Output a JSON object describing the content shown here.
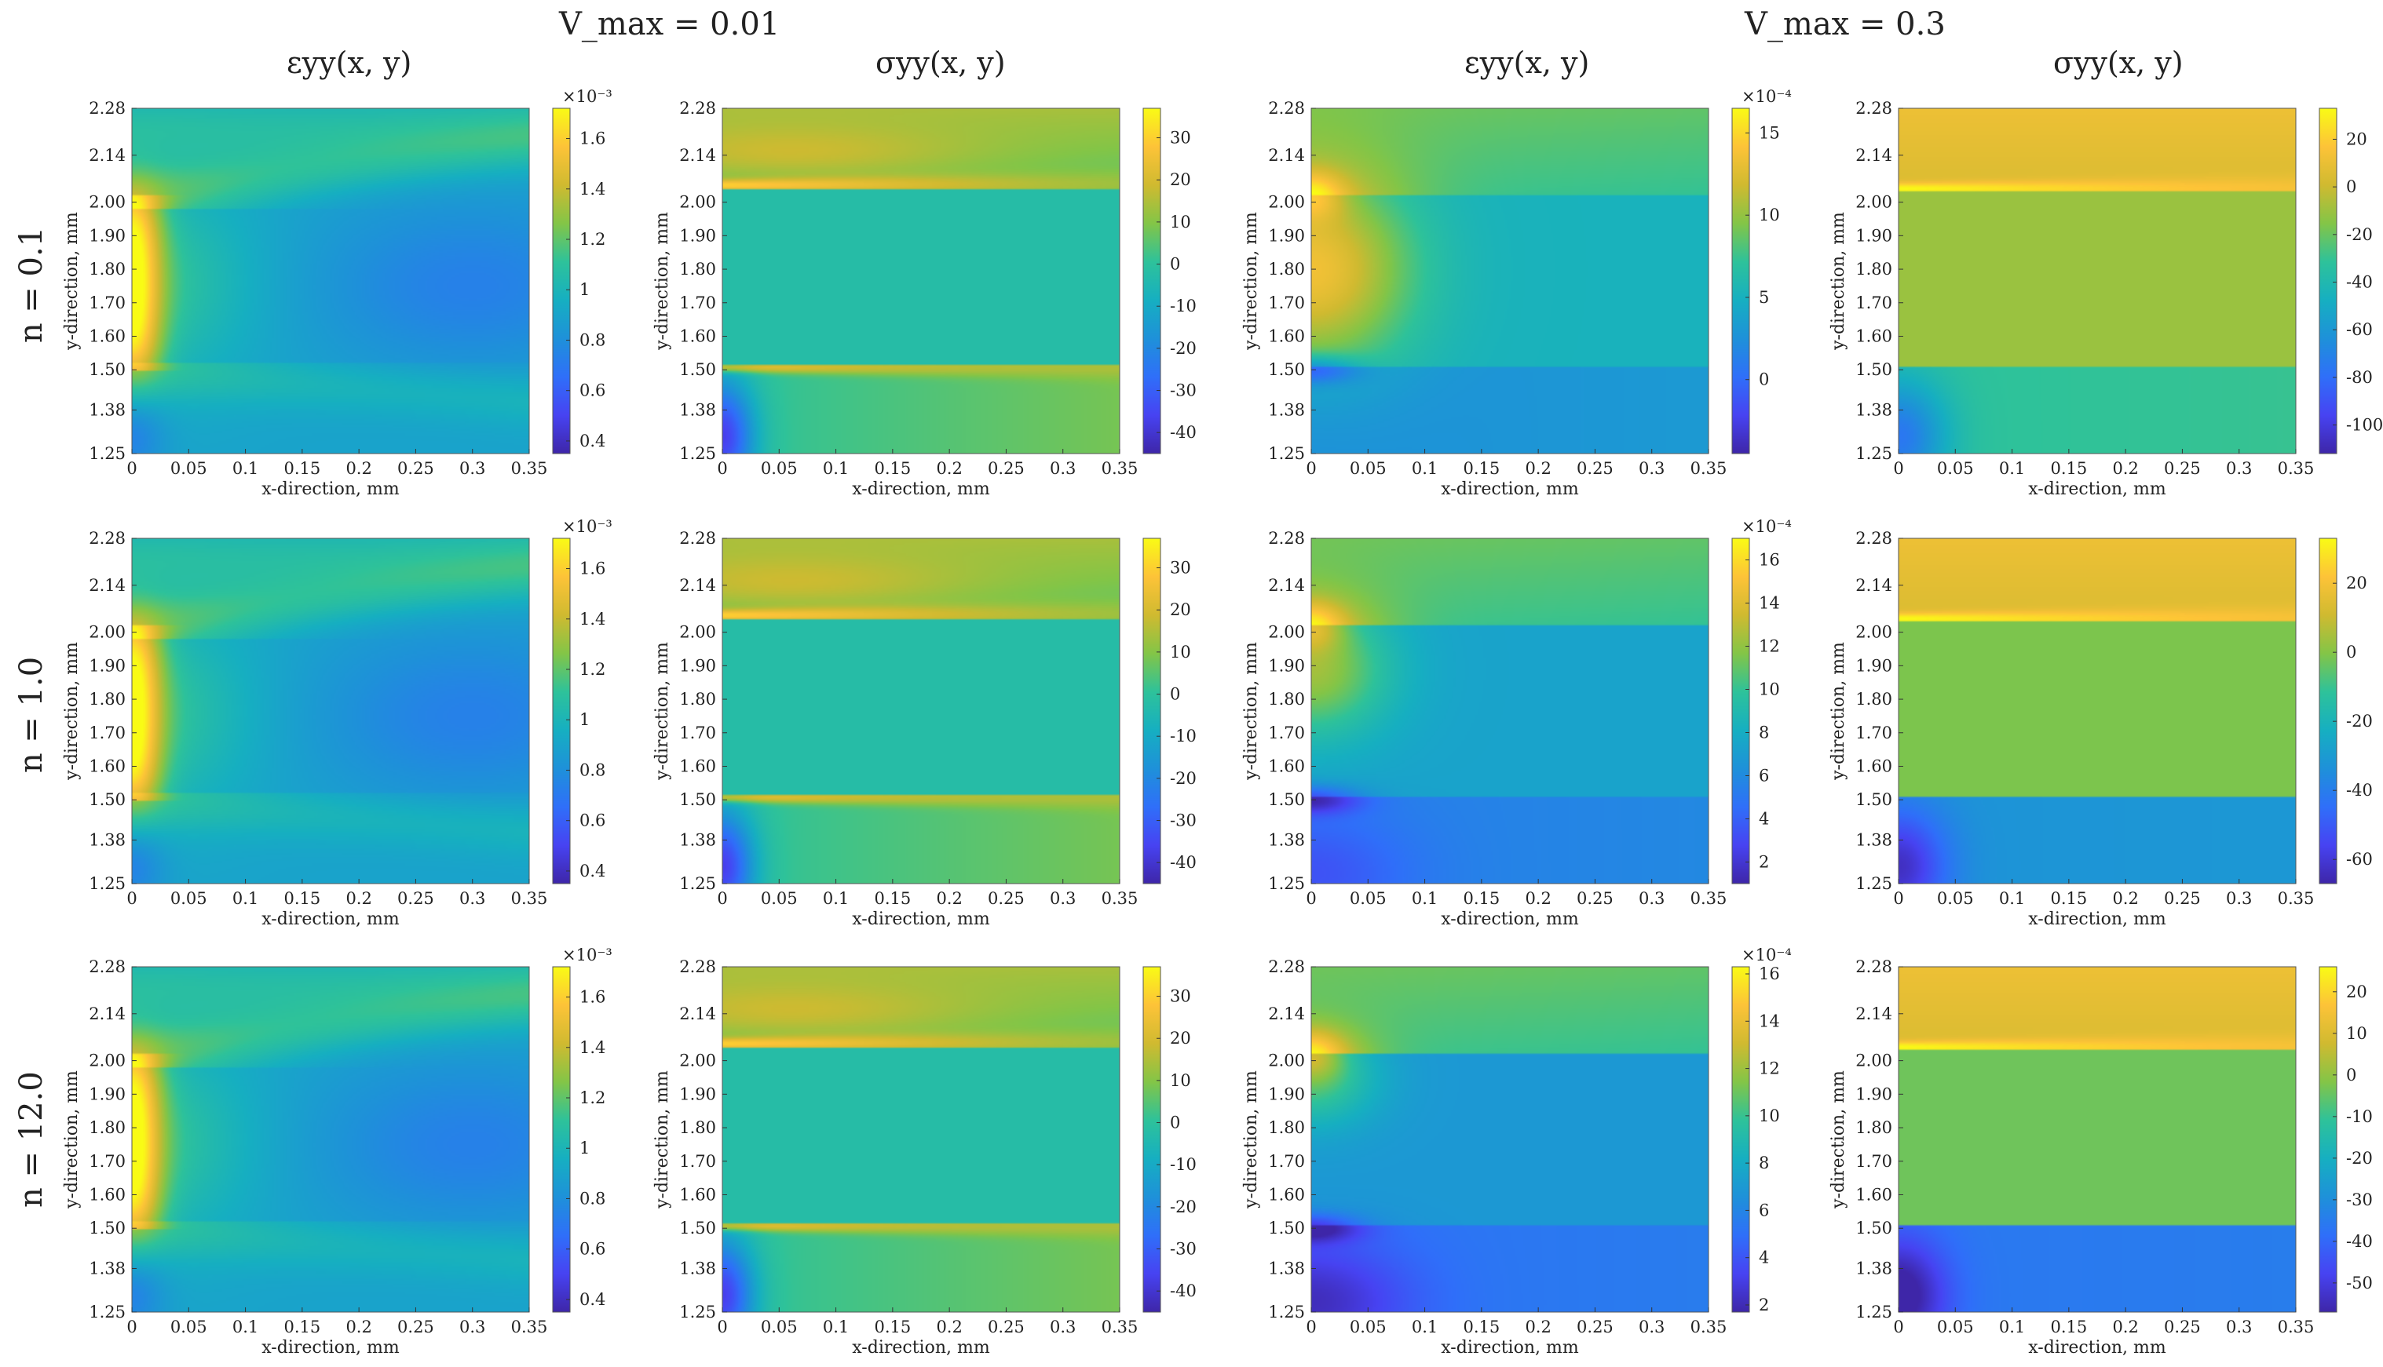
{
  "figure": {
    "group_titles": [
      "V_max = 0.01",
      "V_max = 0.3"
    ],
    "column_titles": [
      "εyy(x, y)",
      "σyy(x, y)",
      "εyy(x, y)",
      "σyy(x, y)"
    ],
    "row_labels": [
      "n = 0.1",
      "n = 1.0",
      "n = 12.0"
    ]
  },
  "colormap": [
    "#3e26a8",
    "#4743f2",
    "#2f6ff9",
    "#1e91d9",
    "#16afc1",
    "#2ec29a",
    "#83c547",
    "#d0ba30",
    "#fdc338",
    "#f9fb15"
  ],
  "chart_data": [
    {
      "type": "heatmap",
      "row": 0,
      "col": 0,
      "field": "strain",
      "xlabel": "x-direction, mm",
      "ylabel": "y-direction, mm",
      "xlim": [
        0,
        0.35
      ],
      "ylim": [
        1.25,
        2.28
      ],
      "xticks": [
        "0",
        "0.05",
        "0.1",
        "0.15",
        "0.2",
        "0.25",
        "0.3",
        "0.35"
      ],
      "yticks": [
        "1.25",
        "1.38",
        "1.50",
        "1.60",
        "1.70",
        "1.80",
        "1.90",
        "2.00",
        "2.14",
        "2.28"
      ],
      "clim": [
        0.35,
        1.72
      ],
      "cticks": [
        0.4,
        0.6,
        0.8,
        1,
        1.2,
        1.4,
        1.6
      ],
      "cticklabels": [
        "0.4",
        "0.6",
        "0.8",
        "1",
        "1.2",
        "1.4",
        "1.6"
      ],
      "cscale": "×10⁻³"
    },
    {
      "type": "heatmap",
      "row": 0,
      "col": 1,
      "field": "stress",
      "xlabel": "x-direction, mm",
      "ylabel": "y-direction, mm",
      "xlim": [
        0,
        0.35
      ],
      "ylim": [
        1.25,
        2.28
      ],
      "xticks": [
        "0",
        "0.05",
        "0.1",
        "0.15",
        "0.2",
        "0.25",
        "0.3",
        "0.35"
      ],
      "yticks": [
        "1.25",
        "1.38",
        "1.50",
        "1.60",
        "1.70",
        "1.80",
        "1.90",
        "2.00",
        "2.14",
        "2.28"
      ],
      "clim": [
        -45,
        37
      ],
      "cticks": [
        -40,
        -30,
        -20,
        -10,
        0,
        10,
        20,
        30
      ],
      "cticklabels": [
        "-40",
        "-30",
        "-20",
        "-10",
        "0",
        "10",
        "20",
        "30"
      ],
      "cscale": ""
    },
    {
      "type": "heatmap",
      "row": 0,
      "col": 2,
      "field": "strain",
      "xlabel": "x-direction, mm",
      "ylabel": "y-direction, mm",
      "xlim": [
        0,
        0.35
      ],
      "ylim": [
        1.25,
        2.28
      ],
      "xticks": [
        "0",
        "0.05",
        "0.1",
        "0.15",
        "0.2",
        "0.25",
        "0.3",
        "0.35"
      ],
      "yticks": [
        "1.25",
        "1.38",
        "1.50",
        "1.60",
        "1.70",
        "1.80",
        "1.90",
        "2.00",
        "2.14",
        "2.28"
      ],
      "clim": [
        -4.5,
        16.5
      ],
      "cticks": [
        0,
        5,
        10,
        15
      ],
      "cticklabels": [
        "0",
        "5",
        "10",
        "15"
      ],
      "cscale": "×10⁻⁴"
    },
    {
      "type": "heatmap",
      "row": 0,
      "col": 3,
      "field": "stress",
      "xlabel": "x-direction, mm",
      "ylabel": "y-direction, mm",
      "xlim": [
        0,
        0.35
      ],
      "ylim": [
        1.25,
        2.28
      ],
      "xticks": [
        "0",
        "0.05",
        "0.1",
        "0.15",
        "0.2",
        "0.25",
        "0.3",
        "0.35"
      ],
      "yticks": [
        "1.25",
        "1.38",
        "1.50",
        "1.60",
        "1.70",
        "1.80",
        "1.90",
        "2.00",
        "2.14",
        "2.28"
      ],
      "clim": [
        -112,
        33
      ],
      "cticks": [
        -100,
        -80,
        -60,
        -40,
        -20,
        0,
        20
      ],
      "cticklabels": [
        "-100",
        "-80",
        "-60",
        "-40",
        "-20",
        "0",
        "20"
      ],
      "cscale": ""
    },
    {
      "type": "heatmap",
      "row": 1,
      "col": 0,
      "field": "strain",
      "xlabel": "x-direction, mm",
      "ylabel": "y-direction, mm",
      "xlim": [
        0,
        0.35
      ],
      "ylim": [
        1.25,
        2.28
      ],
      "xticks": [
        "0",
        "0.05",
        "0.1",
        "0.15",
        "0.2",
        "0.25",
        "0.3",
        "0.35"
      ],
      "yticks": [
        "1.25",
        "1.38",
        "1.50",
        "1.60",
        "1.70",
        "1.80",
        "1.90",
        "2.00",
        "2.14",
        "2.28"
      ],
      "clim": [
        0.35,
        1.72
      ],
      "cticks": [
        0.4,
        0.6,
        0.8,
        1,
        1.2,
        1.4,
        1.6
      ],
      "cticklabels": [
        "0.4",
        "0.6",
        "0.8",
        "1",
        "1.2",
        "1.4",
        "1.6"
      ],
      "cscale": "×10⁻³"
    },
    {
      "type": "heatmap",
      "row": 1,
      "col": 1,
      "field": "stress",
      "xlabel": "x-direction, mm",
      "ylabel": "y-direction, mm",
      "xlim": [
        0,
        0.35
      ],
      "ylim": [
        1.25,
        2.28
      ],
      "xticks": [
        "0",
        "0.05",
        "0.1",
        "0.15",
        "0.2",
        "0.25",
        "0.3",
        "0.35"
      ],
      "yticks": [
        "1.25",
        "1.38",
        "1.50",
        "1.60",
        "1.70",
        "1.80",
        "1.90",
        "2.00",
        "2.14",
        "2.28"
      ],
      "clim": [
        -45,
        37
      ],
      "cticks": [
        -40,
        -30,
        -20,
        -10,
        0,
        10,
        20,
        30
      ],
      "cticklabels": [
        "-40",
        "-30",
        "-20",
        "-10",
        "0",
        "10",
        "20",
        "30"
      ],
      "cscale": ""
    },
    {
      "type": "heatmap",
      "row": 1,
      "col": 2,
      "field": "strain",
      "xlabel": "x-direction, mm",
      "ylabel": "y-direction, mm",
      "xlim": [
        0,
        0.35
      ],
      "ylim": [
        1.25,
        2.28
      ],
      "xticks": [
        "0",
        "0.05",
        "0.1",
        "0.15",
        "0.2",
        "0.25",
        "0.3",
        "0.35"
      ],
      "yticks": [
        "1.25",
        "1.38",
        "1.50",
        "1.60",
        "1.70",
        "1.80",
        "1.90",
        "2.00",
        "2.14",
        "2.28"
      ],
      "clim": [
        1,
        17
      ],
      "cticks": [
        2,
        4,
        6,
        8,
        10,
        12,
        14,
        16
      ],
      "cticklabels": [
        "2",
        "4",
        "6",
        "8",
        "10",
        "12",
        "14",
        "16"
      ],
      "cscale": "×10⁻⁴"
    },
    {
      "type": "heatmap",
      "row": 1,
      "col": 3,
      "field": "stress",
      "xlabel": "x-direction, mm",
      "ylabel": "y-direction, mm",
      "xlim": [
        0,
        0.35
      ],
      "ylim": [
        1.25,
        2.28
      ],
      "xticks": [
        "0",
        "0.05",
        "0.1",
        "0.15",
        "0.2",
        "0.25",
        "0.3",
        "0.35"
      ],
      "yticks": [
        "1.25",
        "1.38",
        "1.50",
        "1.60",
        "1.70",
        "1.80",
        "1.90",
        "2.00",
        "2.14",
        "2.28"
      ],
      "clim": [
        -67,
        33
      ],
      "cticks": [
        -60,
        -40,
        -20,
        0,
        20
      ],
      "cticklabels": [
        "-60",
        "-40",
        "-20",
        "0",
        "20"
      ],
      "cscale": ""
    },
    {
      "type": "heatmap",
      "row": 2,
      "col": 0,
      "field": "strain",
      "xlabel": "x-direction, mm",
      "ylabel": "y-direction, mm",
      "xlim": [
        0,
        0.35
      ],
      "ylim": [
        1.25,
        2.28
      ],
      "xticks": [
        "0",
        "0.05",
        "0.1",
        "0.15",
        "0.2",
        "0.25",
        "0.3",
        "0.35"
      ],
      "yticks": [
        "1.25",
        "1.38",
        "1.50",
        "1.60",
        "1.70",
        "1.80",
        "1.90",
        "2.00",
        "2.14",
        "2.28"
      ],
      "clim": [
        0.35,
        1.72
      ],
      "cticks": [
        0.4,
        0.6,
        0.8,
        1,
        1.2,
        1.4,
        1.6
      ],
      "cticklabels": [
        "0.4",
        "0.6",
        "0.8",
        "1",
        "1.2",
        "1.4",
        "1.6"
      ],
      "cscale": "×10⁻³"
    },
    {
      "type": "heatmap",
      "row": 2,
      "col": 1,
      "field": "stress",
      "xlabel": "x-direction, mm",
      "ylabel": "y-direction, mm",
      "xlim": [
        0,
        0.35
      ],
      "ylim": [
        1.25,
        2.28
      ],
      "xticks": [
        "0",
        "0.05",
        "0.1",
        "0.15",
        "0.2",
        "0.25",
        "0.3",
        "0.35"
      ],
      "yticks": [
        "1.25",
        "1.38",
        "1.50",
        "1.60",
        "1.70",
        "1.80",
        "1.90",
        "2.00",
        "2.14",
        "2.28"
      ],
      "clim": [
        -45,
        37
      ],
      "cticks": [
        -40,
        -30,
        -20,
        -10,
        0,
        10,
        20,
        30
      ],
      "cticklabels": [
        "-40",
        "-30",
        "-20",
        "-10",
        "0",
        "10",
        "20",
        "30"
      ],
      "cscale": ""
    },
    {
      "type": "heatmap",
      "row": 2,
      "col": 2,
      "field": "strain",
      "xlabel": "x-direction, mm",
      "ylabel": "y-direction, mm",
      "xlim": [
        0,
        0.35
      ],
      "ylim": [
        1.25,
        2.28
      ],
      "xticks": [
        "0",
        "0.05",
        "0.1",
        "0.15",
        "0.2",
        "0.25",
        "0.3",
        "0.35"
      ],
      "yticks": [
        "1.25",
        "1.38",
        "1.50",
        "1.60",
        "1.70",
        "1.80",
        "1.90",
        "2.00",
        "2.14",
        "2.28"
      ],
      "clim": [
        1.7,
        16.3
      ],
      "cticks": [
        2,
        4,
        6,
        8,
        10,
        12,
        14,
        16
      ],
      "cticklabels": [
        "2",
        "4",
        "6",
        "8",
        "10",
        "12",
        "14",
        "16"
      ],
      "cscale": "×10⁻⁴"
    },
    {
      "type": "heatmap",
      "row": 2,
      "col": 3,
      "field": "stress",
      "xlabel": "x-direction, mm",
      "ylabel": "y-direction, mm",
      "xlim": [
        0,
        0.35
      ],
      "ylim": [
        1.25,
        2.28
      ],
      "xticks": [
        "0",
        "0.05",
        "0.1",
        "0.15",
        "0.2",
        "0.25",
        "0.3",
        "0.35"
      ],
      "yticks": [
        "1.25",
        "1.38",
        "1.50",
        "1.60",
        "1.70",
        "1.80",
        "1.90",
        "2.00",
        "2.14",
        "2.28"
      ],
      "clim": [
        -57,
        26
      ],
      "cticks": [
        -50,
        -40,
        -30,
        -20,
        -10,
        0,
        10,
        20
      ],
      "cticklabels": [
        "-50",
        "-40",
        "-30",
        "-20",
        "-10",
        "0",
        "10",
        "20"
      ],
      "cscale": ""
    }
  ]
}
